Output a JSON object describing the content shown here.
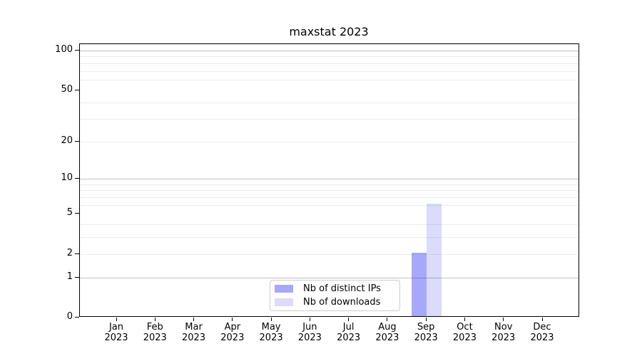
{
  "chart_data": {
    "type": "bar",
    "title": "maxstat 2023",
    "categories": [
      "Jan",
      "Feb",
      "Mar",
      "Apr",
      "May",
      "Jun",
      "Jul",
      "Aug",
      "Sep",
      "Oct",
      "Nov",
      "Dec"
    ],
    "year_label": "2023",
    "series": [
      {
        "name": "Nb of distinct IPs",
        "swatch_color": "#a8a8f6",
        "fill_color": "rgba(0,0,240,0.34)",
        "values": [
          0,
          0,
          0,
          0,
          0,
          0,
          0,
          0,
          2,
          0,
          0,
          0
        ]
      },
      {
        "name": "Nb of downloads",
        "swatch_color": "#dcdcf9",
        "fill_color": "rgba(0,0,240,0.14)",
        "values": [
          0,
          0,
          0,
          0,
          0,
          0,
          0,
          0,
          6,
          0,
          0,
          0
        ]
      }
    ],
    "y_axis": {
      "scale": "log1p",
      "tick_values": [
        0,
        1,
        2,
        5,
        10,
        20,
        50,
        100
      ],
      "major_gridlines": [
        1,
        10,
        100
      ],
      "minor_gridlines": [
        2,
        3,
        4,
        6,
        7,
        8,
        9,
        20,
        30,
        40,
        60,
        70,
        80,
        90
      ],
      "ylim": [
        0,
        113
      ]
    },
    "x_axis": {
      "tick_count": 12
    },
    "legend": {
      "position": "lower center"
    },
    "grid": true
  },
  "colors": {
    "background": "#ffffff",
    "axis": "#000000",
    "major_grid": "#c0c0c0",
    "minor_grid": "#ececec",
    "legend_border": "#cccccc",
    "text": "#000000"
  }
}
